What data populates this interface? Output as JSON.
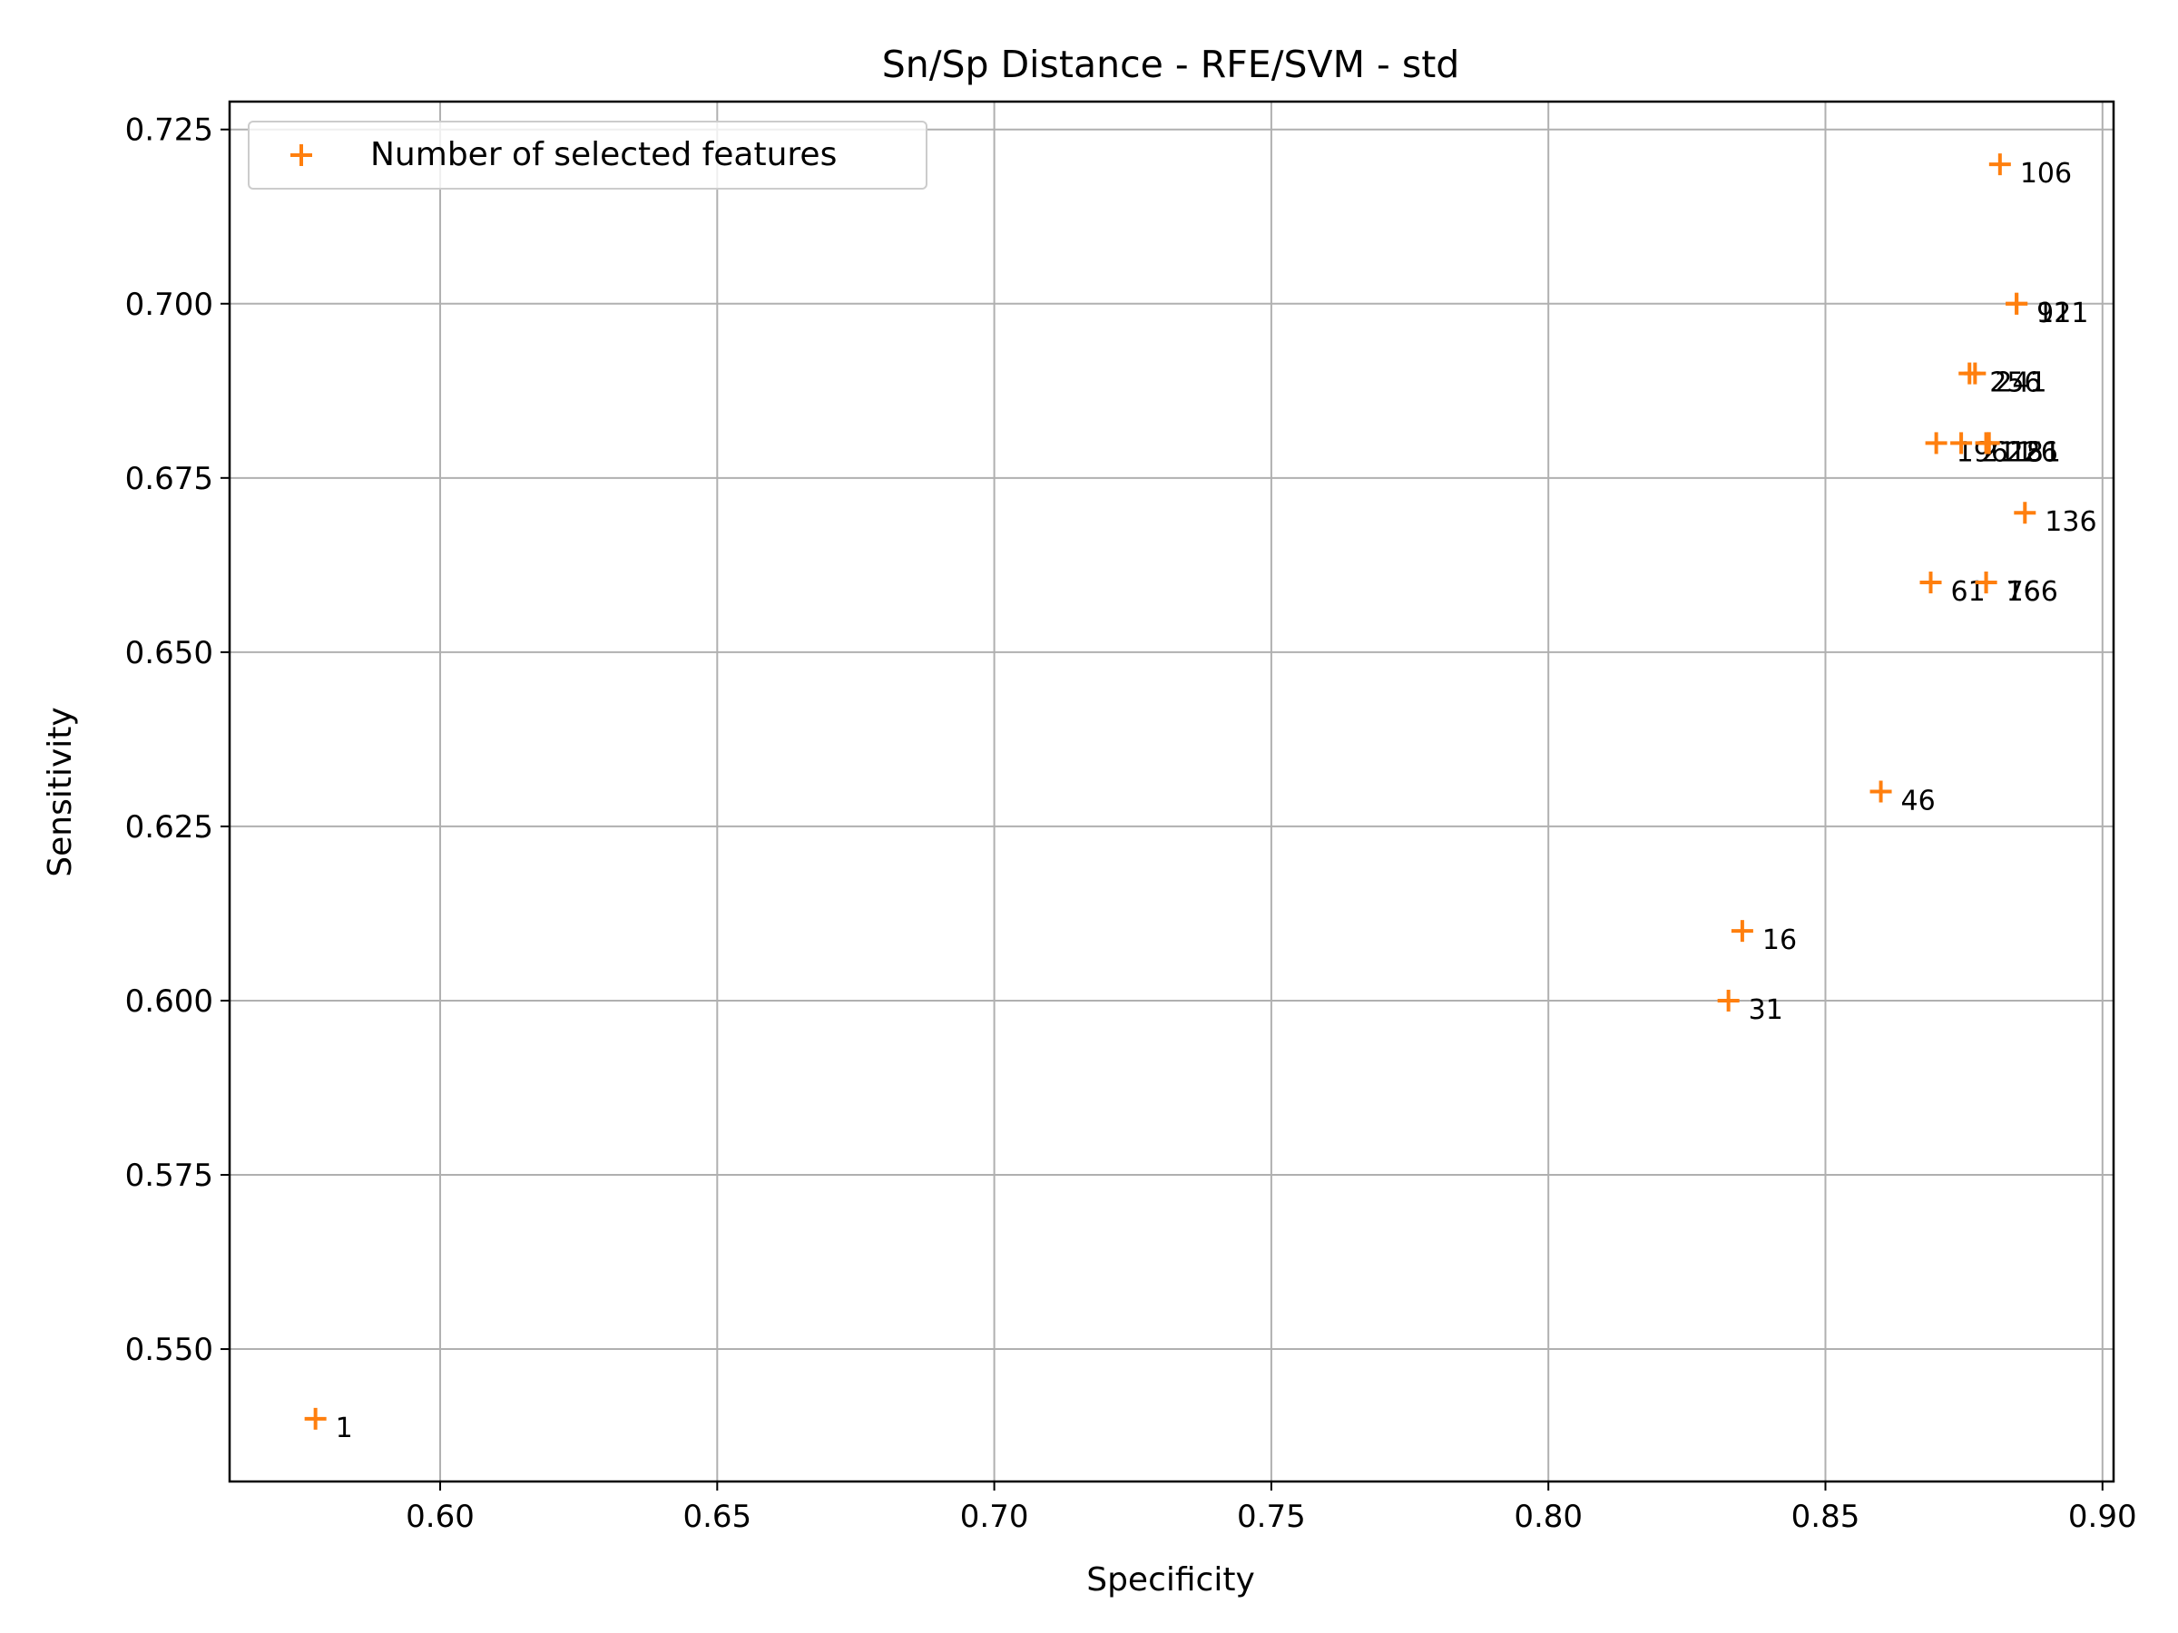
{
  "chart_data": {
    "type": "scatter",
    "title": "Sn/Sp Distance - RFE/SVM - std",
    "xlabel": "Specificity",
    "ylabel": "Sensitivity",
    "xlim": [
      0.562,
      0.902
    ],
    "ylim": [
      0.531,
      0.729
    ],
    "xticks": [
      0.6,
      0.65,
      0.7,
      0.75,
      0.8,
      0.85,
      0.9
    ],
    "xtick_labels": [
      "0.60",
      "0.65",
      "0.70",
      "0.75",
      "0.80",
      "0.85",
      "0.90"
    ],
    "yticks": [
      0.55,
      0.575,
      0.6,
      0.625,
      0.65,
      0.675,
      0.7,
      0.725
    ],
    "ytick_labels": [
      "0.550",
      "0.575",
      "0.600",
      "0.625",
      "0.650",
      "0.675",
      "0.700",
      "0.725"
    ],
    "grid": true,
    "legend_position": "top-left",
    "marker": "plus",
    "marker_color": "#ff7f0e",
    "series": [
      {
        "name": "Number of selected features",
        "points": [
          {
            "x": 0.5775,
            "y": 0.54,
            "label": "1"
          },
          {
            "x": 0.835,
            "y": 0.61,
            "label": "16"
          },
          {
            "x": 0.8325,
            "y": 0.6,
            "label": "31"
          },
          {
            "x": 0.86,
            "y": 0.63,
            "label": "46"
          },
          {
            "x": 0.869,
            "y": 0.66,
            "label": "61"
          },
          {
            "x": 0.879,
            "y": 0.66,
            "label": "76"
          },
          {
            "x": 0.879,
            "y": 0.66,
            "label": "166"
          },
          {
            "x": 0.8845,
            "y": 0.7,
            "label": "91"
          },
          {
            "x": 0.8845,
            "y": 0.7,
            "label": "121"
          },
          {
            "x": 0.8815,
            "y": 0.72,
            "label": "106"
          },
          {
            "x": 0.886,
            "y": 0.67,
            "label": "136"
          },
          {
            "x": 0.87,
            "y": 0.68,
            "label": "196"
          },
          {
            "x": 0.8745,
            "y": 0.68,
            "label": "211"
          },
          {
            "x": 0.879,
            "y": 0.68,
            "label": "226"
          },
          {
            "x": 0.8795,
            "y": 0.68,
            "label": "151"
          },
          {
            "x": 0.8795,
            "y": 0.68,
            "label": "181"
          },
          {
            "x": 0.876,
            "y": 0.69,
            "label": "256"
          },
          {
            "x": 0.877,
            "y": 0.69,
            "label": "241"
          }
        ]
      }
    ]
  }
}
